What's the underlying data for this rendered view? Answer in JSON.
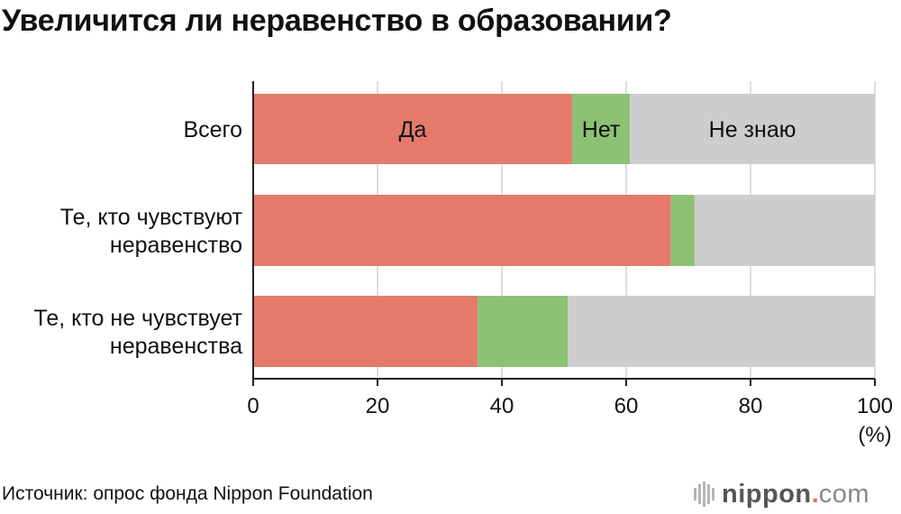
{
  "title": "Увеличится ли неравенство в образовании?",
  "source": "Источник: опрос фонда Nippon Foundation",
  "brand": {
    "name": "nippon",
    "dot": ".",
    "tld": "com",
    "icon": "sound-bars-icon"
  },
  "colors": {
    "yes": "#e57a6a",
    "no": "#8cc274",
    "dont_know": "#cdcdcd",
    "axis": "#222222",
    "grid": "#bbbbbb"
  },
  "chart_data": {
    "type": "bar",
    "orientation": "horizontal",
    "stacked": true,
    "categories": [
      [
        "Всего"
      ],
      [
        "Те, кто чувствуют",
        "неравенство"
      ],
      [
        "Те, кто не чувствует",
        "неравенства"
      ]
    ],
    "series": [
      {
        "name": "Да",
        "values": [
          51.3,
          67.2,
          36.1
        ]
      },
      {
        "name": "Нет",
        "values": [
          9.3,
          3.8,
          14.5
        ]
      },
      {
        "name": "Не знаю",
        "values": [
          39.4,
          29.0,
          49.4
        ]
      }
    ],
    "xlim": [
      0,
      100
    ],
    "xticks": [
      0,
      20,
      40,
      60,
      80,
      100
    ],
    "xlabel": "(%)",
    "legend": "inside first bar",
    "grid": true
  }
}
